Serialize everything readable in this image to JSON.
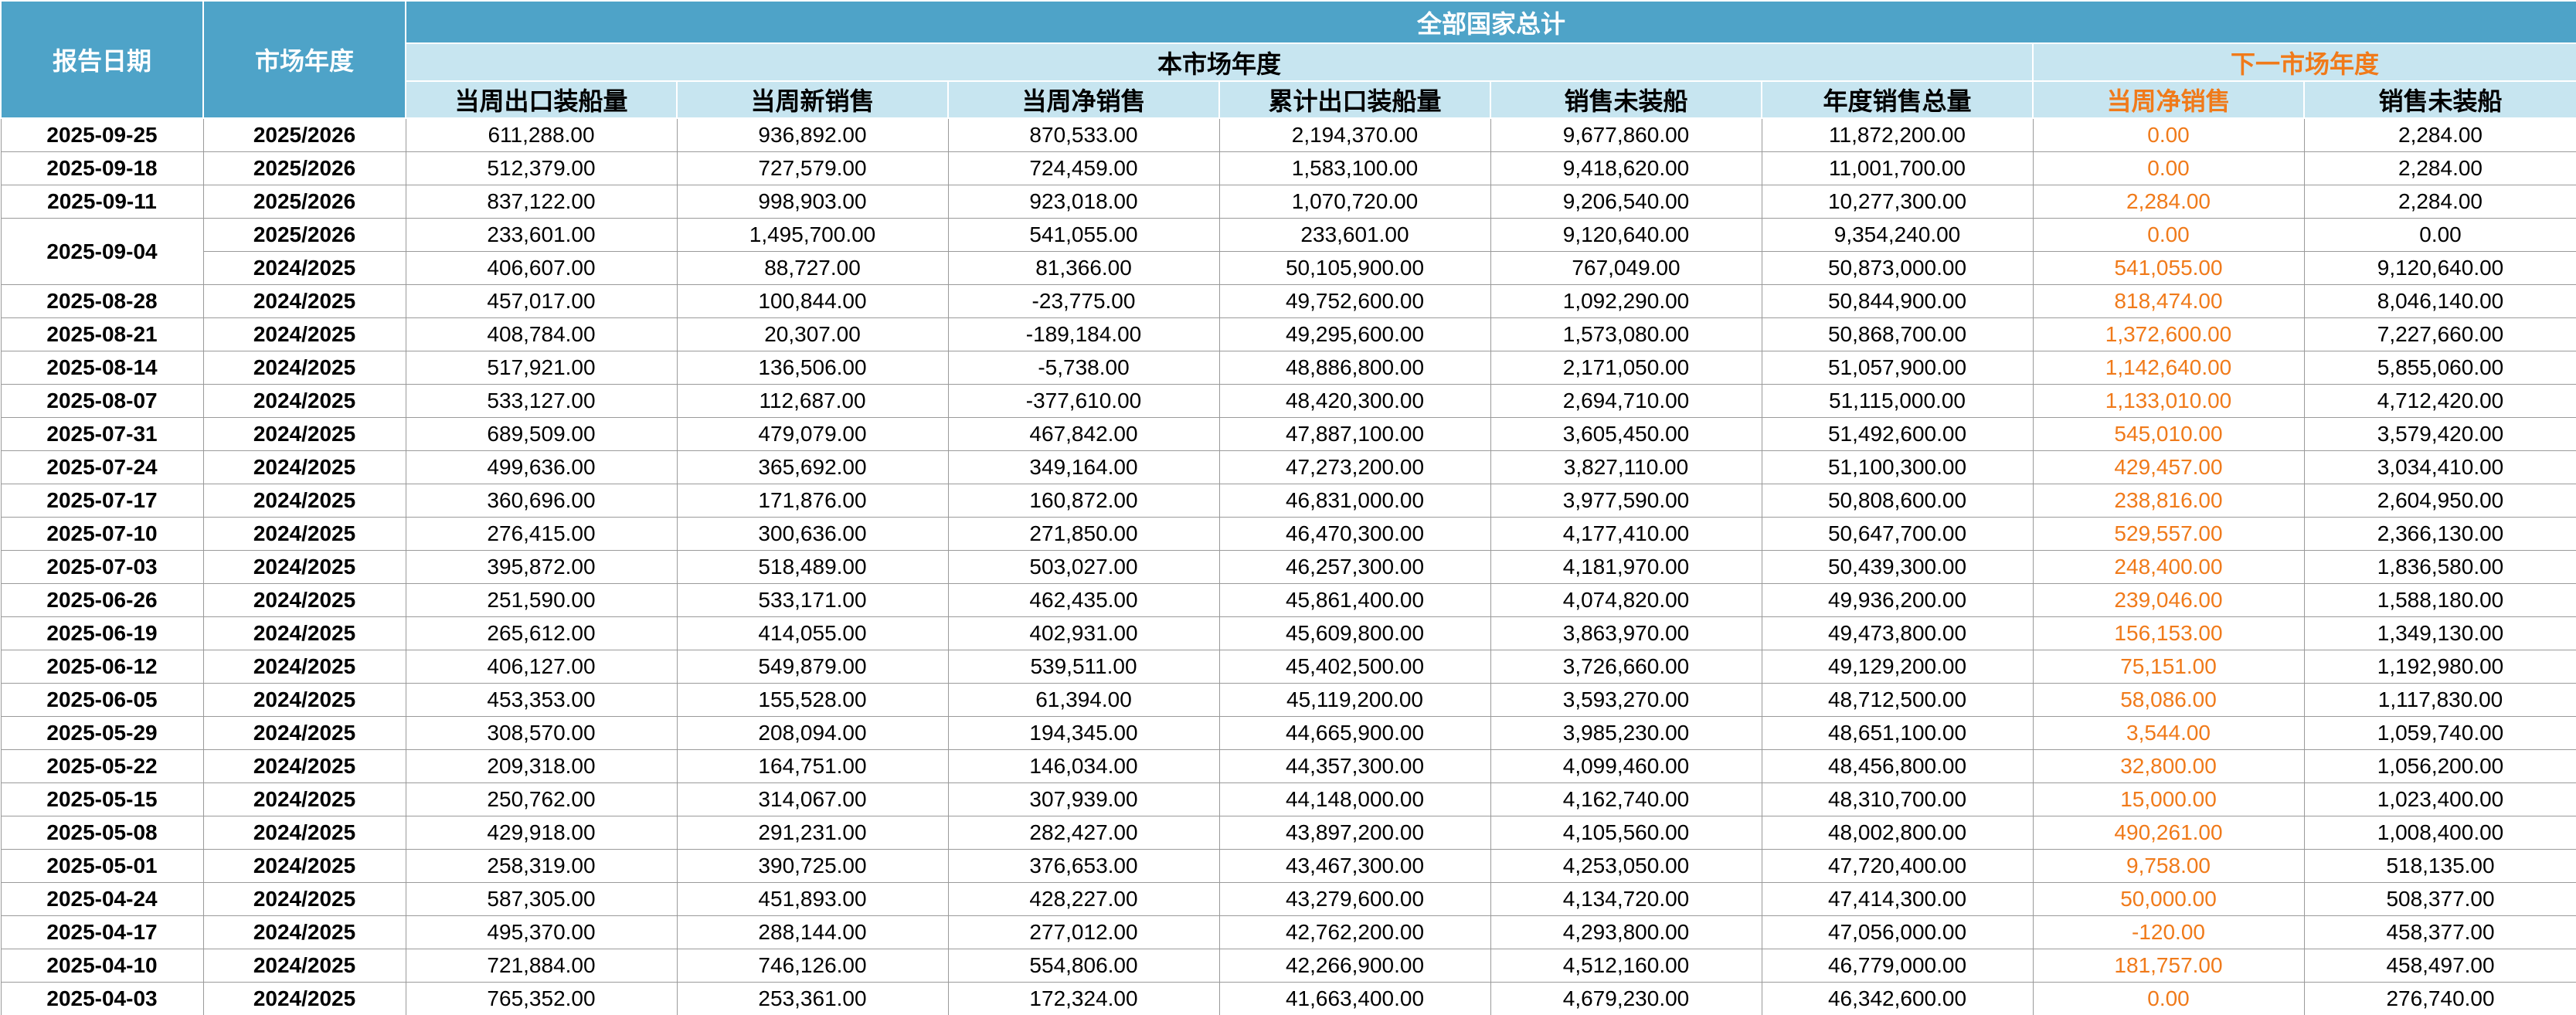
{
  "header": {
    "title": "全部国家总计",
    "date": "报告日期",
    "market": "市场年度",
    "current_group": "本市场年度",
    "next_group": "下一市场年度",
    "columns": [
      "当周出口装船量",
      "当周新销售",
      "当周净销售",
      "累计出口装船量",
      "销售未装船",
      "年度销售总量"
    ],
    "next_columns": [
      "当周净销售",
      "销售未装船"
    ]
  },
  "table": {
    "rows": [
      {
        "date": "2025-09-25",
        "lines": [
          [
            "2025/2026",
            "611,288.00",
            "936,892.00",
            "870,533.00",
            "2,194,370.00",
            "9,677,860.00",
            "11,872,200.00",
            "0.00",
            "2,284.00"
          ]
        ]
      },
      {
        "date": "2025-09-18",
        "lines": [
          [
            "2025/2026",
            "512,379.00",
            "727,579.00",
            "724,459.00",
            "1,583,100.00",
            "9,418,620.00",
            "11,001,700.00",
            "0.00",
            "2,284.00"
          ]
        ]
      },
      {
        "date": "2025-09-11",
        "lines": [
          [
            "2025/2026",
            "837,122.00",
            "998,903.00",
            "923,018.00",
            "1,070,720.00",
            "9,206,540.00",
            "10,277,300.00",
            "2,284.00",
            "2,284.00"
          ]
        ]
      },
      {
        "date": "2025-09-04",
        "lines": [
          [
            "2025/2026",
            "233,601.00",
            "1,495,700.00",
            "541,055.00",
            "233,601.00",
            "9,120,640.00",
            "9,354,240.00",
            "0.00",
            "0.00"
          ],
          [
            "2024/2025",
            "406,607.00",
            "88,727.00",
            "81,366.00",
            "50,105,900.00",
            "767,049.00",
            "50,873,000.00",
            "541,055.00",
            "9,120,640.00"
          ]
        ]
      },
      {
        "date": "2025-08-28",
        "lines": [
          [
            "2024/2025",
            "457,017.00",
            "100,844.00",
            "-23,775.00",
            "49,752,600.00",
            "1,092,290.00",
            "50,844,900.00",
            "818,474.00",
            "8,046,140.00"
          ]
        ]
      },
      {
        "date": "2025-08-21",
        "lines": [
          [
            "2024/2025",
            "408,784.00",
            "20,307.00",
            "-189,184.00",
            "49,295,600.00",
            "1,573,080.00",
            "50,868,700.00",
            "1,372,600.00",
            "7,227,660.00"
          ]
        ]
      },
      {
        "date": "2025-08-14",
        "lines": [
          [
            "2024/2025",
            "517,921.00",
            "136,506.00",
            "-5,738.00",
            "48,886,800.00",
            "2,171,050.00",
            "51,057,900.00",
            "1,142,640.00",
            "5,855,060.00"
          ]
        ]
      },
      {
        "date": "2025-08-07",
        "lines": [
          [
            "2024/2025",
            "533,127.00",
            "112,687.00",
            "-377,610.00",
            "48,420,300.00",
            "2,694,710.00",
            "51,115,000.00",
            "1,133,010.00",
            "4,712,420.00"
          ]
        ]
      },
      {
        "date": "2025-07-31",
        "lines": [
          [
            "2024/2025",
            "689,509.00",
            "479,079.00",
            "467,842.00",
            "47,887,100.00",
            "3,605,450.00",
            "51,492,600.00",
            "545,010.00",
            "3,579,420.00"
          ]
        ]
      },
      {
        "date": "2025-07-24",
        "lines": [
          [
            "2024/2025",
            "499,636.00",
            "365,692.00",
            "349,164.00",
            "47,273,200.00",
            "3,827,110.00",
            "51,100,300.00",
            "429,457.00",
            "3,034,410.00"
          ]
        ]
      },
      {
        "date": "2025-07-17",
        "lines": [
          [
            "2024/2025",
            "360,696.00",
            "171,876.00",
            "160,872.00",
            "46,831,000.00",
            "3,977,590.00",
            "50,808,600.00",
            "238,816.00",
            "2,604,950.00"
          ]
        ]
      },
      {
        "date": "2025-07-10",
        "lines": [
          [
            "2024/2025",
            "276,415.00",
            "300,636.00",
            "271,850.00",
            "46,470,300.00",
            "4,177,410.00",
            "50,647,700.00",
            "529,557.00",
            "2,366,130.00"
          ]
        ]
      },
      {
        "date": "2025-07-03",
        "lines": [
          [
            "2024/2025",
            "395,872.00",
            "518,489.00",
            "503,027.00",
            "46,257,300.00",
            "4,181,970.00",
            "50,439,300.00",
            "248,400.00",
            "1,836,580.00"
          ]
        ]
      },
      {
        "date": "2025-06-26",
        "lines": [
          [
            "2024/2025",
            "251,590.00",
            "533,171.00",
            "462,435.00",
            "45,861,400.00",
            "4,074,820.00",
            "49,936,200.00",
            "239,046.00",
            "1,588,180.00"
          ]
        ]
      },
      {
        "date": "2025-06-19",
        "lines": [
          [
            "2024/2025",
            "265,612.00",
            "414,055.00",
            "402,931.00",
            "45,609,800.00",
            "3,863,970.00",
            "49,473,800.00",
            "156,153.00",
            "1,349,130.00"
          ]
        ]
      },
      {
        "date": "2025-06-12",
        "lines": [
          [
            "2024/2025",
            "406,127.00",
            "549,879.00",
            "539,511.00",
            "45,402,500.00",
            "3,726,660.00",
            "49,129,200.00",
            "75,151.00",
            "1,192,980.00"
          ]
        ]
      },
      {
        "date": "2025-06-05",
        "lines": [
          [
            "2024/2025",
            "453,353.00",
            "155,528.00",
            "61,394.00",
            "45,119,200.00",
            "3,593,270.00",
            "48,712,500.00",
            "58,086.00",
            "1,117,830.00"
          ]
        ]
      },
      {
        "date": "2025-05-29",
        "lines": [
          [
            "2024/2025",
            "308,570.00",
            "208,094.00",
            "194,345.00",
            "44,665,900.00",
            "3,985,230.00",
            "48,651,100.00",
            "3,544.00",
            "1,059,740.00"
          ]
        ]
      },
      {
        "date": "2025-05-22",
        "lines": [
          [
            "2024/2025",
            "209,318.00",
            "164,751.00",
            "146,034.00",
            "44,357,300.00",
            "4,099,460.00",
            "48,456,800.00",
            "32,800.00",
            "1,056,200.00"
          ]
        ]
      },
      {
        "date": "2025-05-15",
        "lines": [
          [
            "2024/2025",
            "250,762.00",
            "314,067.00",
            "307,939.00",
            "44,148,000.00",
            "4,162,740.00",
            "48,310,700.00",
            "15,000.00",
            "1,023,400.00"
          ]
        ]
      },
      {
        "date": "2025-05-08",
        "lines": [
          [
            "2024/2025",
            "429,918.00",
            "291,231.00",
            "282,427.00",
            "43,897,200.00",
            "4,105,560.00",
            "48,002,800.00",
            "490,261.00",
            "1,008,400.00"
          ]
        ]
      },
      {
        "date": "2025-05-01",
        "lines": [
          [
            "2024/2025",
            "258,319.00",
            "390,725.00",
            "376,653.00",
            "43,467,300.00",
            "4,253,050.00",
            "47,720,400.00",
            "9,758.00",
            "518,135.00"
          ]
        ]
      },
      {
        "date": "2025-04-24",
        "lines": [
          [
            "2024/2025",
            "587,305.00",
            "451,893.00",
            "428,227.00",
            "43,279,600.00",
            "4,134,720.00",
            "47,414,300.00",
            "50,000.00",
            "508,377.00"
          ]
        ]
      },
      {
        "date": "2025-04-17",
        "lines": [
          [
            "2024/2025",
            "495,370.00",
            "288,144.00",
            "277,012.00",
            "42,762,200.00",
            "4,293,800.00",
            "47,056,000.00",
            "-120.00",
            "458,377.00"
          ]
        ]
      },
      {
        "date": "2025-04-10",
        "lines": [
          [
            "2024/2025",
            "721,884.00",
            "746,126.00",
            "554,806.00",
            "42,266,900.00",
            "4,512,160.00",
            "46,779,000.00",
            "181,757.00",
            "458,497.00"
          ]
        ]
      },
      {
        "date": "2025-04-03",
        "lines": [
          [
            "2024/2025",
            "765,352.00",
            "253,361.00",
            "172,324.00",
            "41,663,400.00",
            "4,679,230.00",
            "46,342,600.00",
            "0.00",
            "276,740.00"
          ]
        ]
      }
    ]
  }
}
